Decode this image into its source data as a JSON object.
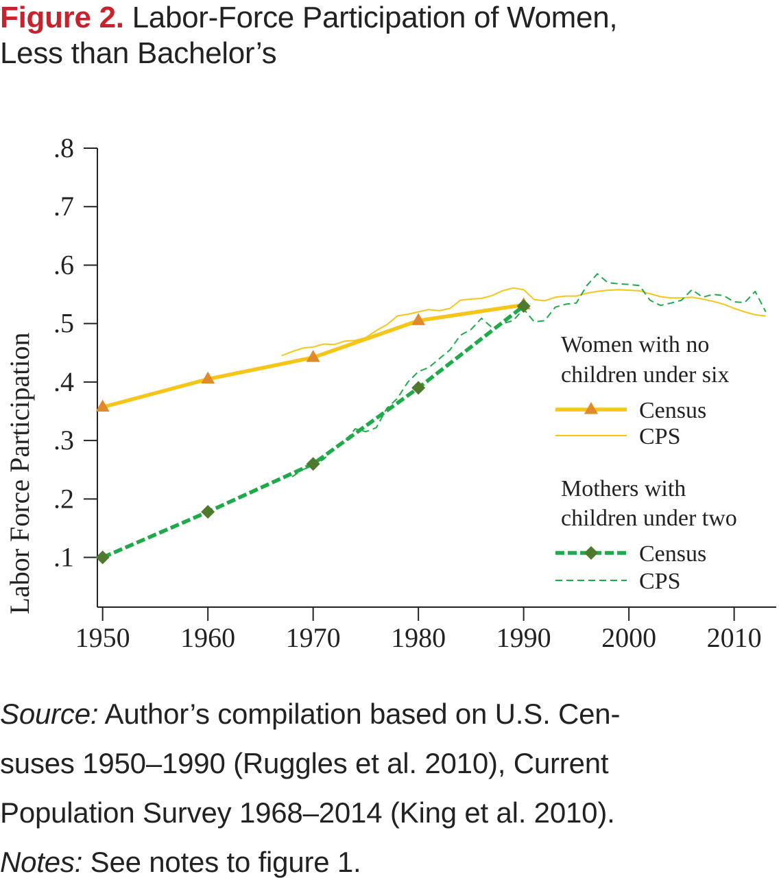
{
  "figure": {
    "label": "Figure 2.",
    "title": "Labor-Force Participation of Women,",
    "title_line2": "Less than Bachelor’s"
  },
  "chart_data": {
    "type": "line",
    "ylabel": "Labor Force Participation",
    "xlabel": "",
    "xlim": [
      1949.5,
      2014
    ],
    "ylim": [
      0.015,
      0.8
    ],
    "x_ticks": [
      1950,
      1960,
      1970,
      1980,
      1990,
      2000,
      2010
    ],
    "x_tick_labels": [
      "1950",
      "1960",
      "1970",
      "1980",
      "1990",
      "2000",
      "2010"
    ],
    "y_ticks": [
      0.1,
      0.2,
      0.3,
      0.4,
      0.5,
      0.6,
      0.7,
      0.8
    ],
    "y_tick_labels": [
      ".1",
      ".2",
      ".3",
      ".4",
      ".5",
      ".6",
      ".7",
      ".8"
    ],
    "colors": {
      "census_no_children": "#f5c518",
      "census_no_children_marker": "#e08a2a",
      "cps_no_children": "#f5c518",
      "census_mothers": "#1faa4a",
      "census_mothers_marker": "#4f7a2e",
      "cps_mothers": "#1faa4a"
    },
    "legend": {
      "position": "right",
      "group1_title_line1": "Women with no",
      "group1_title_line2": "children under six",
      "group1_census": "Census",
      "group1_cps": "CPS",
      "group2_title_line1": "Mothers with",
      "group2_title_line2": "children under two",
      "group2_census": "Census",
      "group2_cps": "CPS"
    },
    "series": [
      {
        "key": "census_no_children",
        "group": "Women with no children under six",
        "name": "Census",
        "style": "thick-solid",
        "marker": "triangle",
        "x": [
          1950,
          1960,
          1970,
          1980,
          1990
        ],
        "y": [
          0.357,
          0.405,
          0.442,
          0.505,
          0.532
        ]
      },
      {
        "key": "cps_no_children",
        "group": "Women with no children under six",
        "name": "CPS",
        "style": "thin-solid",
        "marker": "none",
        "x": [
          1967,
          1968,
          1969,
          1970,
          1971,
          1972,
          1973,
          1974,
          1975,
          1976,
          1977,
          1978,
          1979,
          1980,
          1981,
          1982,
          1983,
          1984,
          1985,
          1986,
          1987,
          1988,
          1989,
          1990,
          1991,
          1992,
          1993,
          1994,
          1995,
          1996,
          1997,
          1998,
          1999,
          2000,
          2001,
          2002,
          2003,
          2004,
          2005,
          2006,
          2007,
          2008,
          2009,
          2010,
          2011,
          2012,
          2013
        ],
        "y": [
          0.445,
          0.452,
          0.458,
          0.46,
          0.465,
          0.464,
          0.47,
          0.471,
          0.476,
          0.488,
          0.498,
          0.513,
          0.516,
          0.52,
          0.524,
          0.522,
          0.526,
          0.54,
          0.542,
          0.543,
          0.548,
          0.556,
          0.561,
          0.558,
          0.541,
          0.539,
          0.545,
          0.547,
          0.547,
          0.552,
          0.555,
          0.557,
          0.558,
          0.557,
          0.556,
          0.551,
          0.546,
          0.544,
          0.544,
          0.545,
          0.542,
          0.538,
          0.533,
          0.526,
          0.52,
          0.515,
          0.513
        ]
      },
      {
        "key": "census_mothers",
        "group": "Mothers with children under two",
        "name": "Census",
        "style": "thick-dashed",
        "marker": "diamond",
        "x": [
          1950,
          1960,
          1970,
          1980,
          1990
        ],
        "y": [
          0.1,
          0.178,
          0.26,
          0.39,
          0.53
        ]
      },
      {
        "key": "cps_mothers",
        "group": "Mothers with children under two",
        "name": "CPS",
        "style": "thin-dashed",
        "marker": "none",
        "x": [
          1968,
          1969,
          1970,
          1971,
          1972,
          1973,
          1974,
          1975,
          1976,
          1977,
          1978,
          1979,
          1980,
          1981,
          1982,
          1983,
          1984,
          1985,
          1986,
          1987,
          1988,
          1989,
          1990,
          1991,
          1992,
          1993,
          1994,
          1995,
          1996,
          1997,
          1998,
          1999,
          2000,
          2001,
          2002,
          2003,
          2004,
          2005,
          2006,
          2007,
          2008,
          2009,
          2010,
          2011,
          2012,
          2013
        ],
        "y": [
          0.238,
          0.25,
          0.257,
          0.268,
          0.285,
          0.298,
          0.32,
          0.315,
          0.322,
          0.355,
          0.372,
          0.4,
          0.418,
          0.425,
          0.44,
          0.455,
          0.48,
          0.49,
          0.509,
          0.493,
          0.5,
          0.505,
          0.525,
          0.503,
          0.505,
          0.528,
          0.533,
          0.535,
          0.565,
          0.585,
          0.57,
          0.568,
          0.567,
          0.565,
          0.54,
          0.531,
          0.535,
          0.54,
          0.558,
          0.545,
          0.55,
          0.548,
          0.537,
          0.536,
          0.555,
          0.52
        ]
      }
    ]
  },
  "footnote": {
    "source_label": "Source:",
    "source_text": " Author’s compilation based on U.S. Cen-",
    "source_line2": "suses 1950–1990 (Ruggles et al. 2010), Current",
    "source_line3": "Population Survey 1968–2014 (King et al. 2010).",
    "notes_label": "Notes:",
    "notes_text": " See notes to figure 1."
  }
}
